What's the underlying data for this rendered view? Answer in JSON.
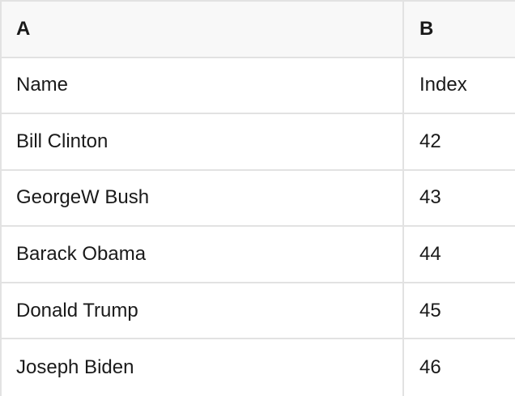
{
  "table": {
    "columns": [
      {
        "label": "A"
      },
      {
        "label": "B"
      }
    ],
    "rows": [
      [
        "Name",
        "Index"
      ],
      [
        "Bill Clinton",
        "42"
      ],
      [
        "GeorgeW Bush",
        "43"
      ],
      [
        "Barack Obama",
        "44"
      ],
      [
        "Donald Trump",
        "45"
      ],
      [
        "Joseph Biden",
        "46"
      ]
    ]
  },
  "colors": {
    "header_bg": "#f8f8f8",
    "cell_bg": "#ffffff",
    "border": "#e2e2e2",
    "text": "#1a1a1a"
  }
}
